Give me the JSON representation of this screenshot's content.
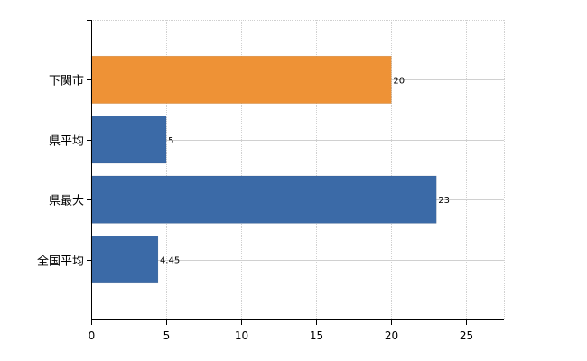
{
  "chart_data": {
    "type": "bar",
    "orientation": "horizontal",
    "categories": [
      "下関市",
      "県平均",
      "県最大",
      "全国平均"
    ],
    "values": [
      20,
      5,
      23,
      4.45
    ],
    "value_labels": [
      "20",
      "5",
      "23",
      "4.45"
    ],
    "bar_colors": [
      "#EE9236",
      "#3B6AA7",
      "#3B6AA7",
      "#3B6AA7"
    ],
    "xlim": [
      0,
      27.5
    ],
    "xticks": [
      0,
      5,
      10,
      15,
      20,
      25
    ],
    "grid": true,
    "title": "",
    "xlabel": "",
    "ylabel": ""
  }
}
